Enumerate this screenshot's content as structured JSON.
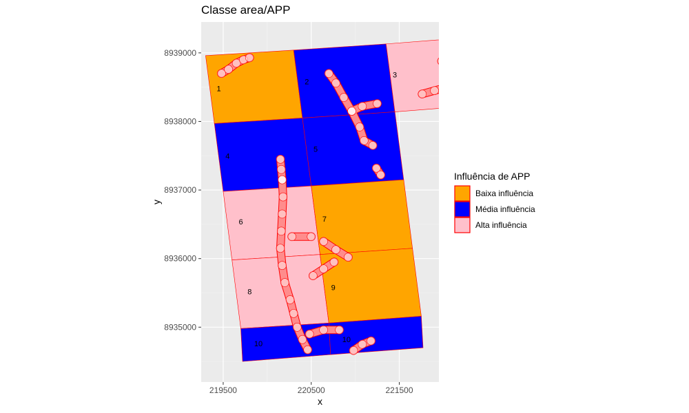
{
  "chart_data": {
    "type": "map",
    "title": "Classe area/APP",
    "xlabel": "x",
    "ylabel": "y",
    "xlim": [
      219250,
      221950
    ],
    "ylim": [
      8934200,
      8939450
    ],
    "x_ticks": [
      219500,
      220500,
      221500
    ],
    "x_tick_labels": [
      "219500",
      "220500",
      "221500"
    ],
    "y_ticks": [
      8935000,
      8936000,
      8937000,
      8938000,
      8939000
    ],
    "y_tick_labels": [
      "8935000",
      "8936000",
      "8937000",
      "8938000",
      "8939000"
    ],
    "grid": true,
    "legend": {
      "title": "Influência de APP",
      "placement": "right",
      "entries": [
        {
          "label": "Baixa influência",
          "color": "#FFA500"
        },
        {
          "label": "Média influência",
          "color": "#0000FF"
        },
        {
          "label": "Alta influência",
          "color": "#FFC0CB"
        }
      ]
    },
    "border_color": "#FF0000",
    "cells": [
      {
        "label": "1",
        "class": "Baixa influência",
        "corners": [
          [
            219300,
            8938960
          ],
          [
            220300,
            8939040
          ],
          [
            220400,
            8938050
          ],
          [
            219400,
            8937970
          ]
        ],
        "label_at": [
          219450,
          8938480
        ]
      },
      {
        "label": "2",
        "class": "Média influência",
        "corners": [
          [
            220300,
            8939040
          ],
          [
            221350,
            8939130
          ],
          [
            221450,
            8938140
          ],
          [
            220400,
            8938050
          ]
        ],
        "label_at": [
          220450,
          8938580
        ]
      },
      {
        "label": "3",
        "class": "Alta influência",
        "corners": [
          [
            221350,
            8939130
          ],
          [
            222350,
            8939230
          ],
          [
            222450,
            8938240
          ],
          [
            221450,
            8938140
          ]
        ],
        "label_at": [
          221450,
          8938680
        ]
      },
      {
        "label": "4",
        "class": "Média influência",
        "corners": [
          [
            219400,
            8937970
          ],
          [
            220400,
            8938050
          ],
          [
            220500,
            8937060
          ],
          [
            219500,
            8936980
          ]
        ],
        "label_at": [
          219550,
          8937500
        ]
      },
      {
        "label": "5",
        "class": "Média influência",
        "corners": [
          [
            220400,
            8938050
          ],
          [
            221450,
            8938140
          ],
          [
            221550,
            8937150
          ],
          [
            220500,
            8937060
          ]
        ],
        "label_at": [
          220550,
          8937600
        ]
      },
      {
        "label": "6",
        "class": "Alta influência",
        "corners": [
          [
            219500,
            8936980
          ],
          [
            220500,
            8937060
          ],
          [
            220600,
            8936060
          ],
          [
            219600,
            8935980
          ]
        ],
        "label_at": [
          219700,
          8936540
        ]
      },
      {
        "label": "7",
        "class": "Baixa influência",
        "corners": [
          [
            220500,
            8937060
          ],
          [
            221550,
            8937150
          ],
          [
            221650,
            8936150
          ],
          [
            220600,
            8936060
          ]
        ],
        "label_at": [
          220650,
          8936580
        ]
      },
      {
        "label": "8",
        "class": "Alta influência",
        "corners": [
          [
            219600,
            8935980
          ],
          [
            220600,
            8936060
          ],
          [
            220700,
            8935060
          ],
          [
            219700,
            8934980
          ]
        ],
        "label_at": [
          219800,
          8935520
        ]
      },
      {
        "label": "9",
        "class": "Baixa influência",
        "corners": [
          [
            220600,
            8936060
          ],
          [
            221650,
            8936150
          ],
          [
            221750,
            8935160
          ],
          [
            220700,
            8935060
          ]
        ],
        "label_at": [
          220750,
          8935580
        ]
      },
      {
        "label": "10",
        "class": "Média influência",
        "corners": [
          [
            219700,
            8934980
          ],
          [
            220700,
            8935060
          ],
          [
            220720,
            8934600
          ],
          [
            219720,
            8934500
          ]
        ],
        "label_at": [
          219900,
          8934760
        ]
      },
      {
        "label": "10",
        "class": "Média influência",
        "corners": [
          [
            220700,
            8935060
          ],
          [
            221750,
            8935160
          ],
          [
            221770,
            8934700
          ],
          [
            220720,
            8934600
          ]
        ],
        "label_at": [
          220900,
          8934820
        ]
      }
    ],
    "app_buffers": [
      {
        "path": [
          [
            219480,
            8938700
          ],
          [
            219560,
            8938760
          ],
          [
            219650,
            8938850
          ],
          [
            219730,
            8938900
          ],
          [
            219800,
            8938930
          ]
        ]
      },
      {
        "path": [
          [
            220700,
            8938700
          ],
          [
            220780,
            8938560
          ],
          [
            220870,
            8938350
          ],
          [
            220960,
            8938150
          ],
          [
            221050,
            8937920
          ],
          [
            221100,
            8937720
          ],
          [
            221200,
            8937650
          ]
        ]
      },
      {
        "path": [
          [
            220960,
            8938150
          ],
          [
            221080,
            8938220
          ],
          [
            221250,
            8938260
          ]
        ]
      },
      {
        "path": [
          [
            221240,
            8937320
          ],
          [
            221290,
            8937220
          ]
        ]
      },
      {
        "path": [
          [
            221980,
            8938880
          ],
          [
            222060,
            8938750
          ],
          [
            222140,
            8938600
          ],
          [
            222220,
            8938460
          ],
          [
            222350,
            8938380
          ]
        ]
      },
      {
        "path": [
          [
            221760,
            8938400
          ],
          [
            221900,
            8938450
          ],
          [
            222050,
            8938500
          ],
          [
            222200,
            8938560
          ],
          [
            222350,
            8938620
          ]
        ]
      },
      {
        "path": [
          [
            220150,
            8937450
          ],
          [
            220160,
            8937300
          ],
          [
            220170,
            8937150
          ]
        ]
      },
      {
        "path": [
          [
            220170,
            8937150
          ],
          [
            220180,
            8936900
          ],
          [
            220170,
            8936650
          ],
          [
            220160,
            8936400
          ],
          [
            220150,
            8936150
          ],
          [
            220170,
            8935900
          ],
          [
            220200,
            8935650
          ],
          [
            220260,
            8935400
          ],
          [
            220300,
            8935200
          ],
          [
            220340,
            8935000
          ],
          [
            220400,
            8934820
          ],
          [
            220460,
            8934670
          ]
        ]
      },
      {
        "path": [
          [
            220280,
            8936320
          ],
          [
            220500,
            8936320
          ]
        ]
      },
      {
        "path": [
          [
            220640,
            8936250
          ],
          [
            220780,
            8936130
          ],
          [
            220920,
            8936020
          ]
        ]
      },
      {
        "path": [
          [
            220520,
            8935750
          ],
          [
            220640,
            8935850
          ],
          [
            220760,
            8935950
          ]
        ]
      },
      {
        "path": [
          [
            220480,
            8934900
          ],
          [
            220640,
            8934960
          ],
          [
            220820,
            8934960
          ]
        ]
      },
      {
        "path": [
          [
            220980,
            8934660
          ],
          [
            221080,
            8934750
          ],
          [
            221180,
            8934800
          ]
        ]
      }
    ]
  }
}
